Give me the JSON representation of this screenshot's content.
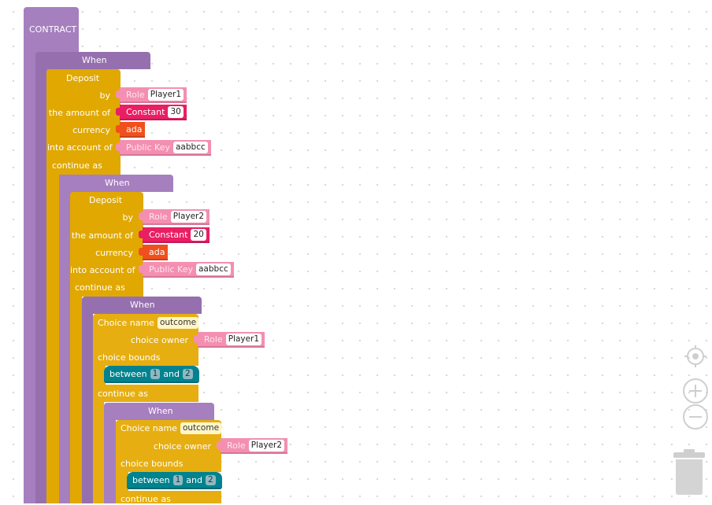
{
  "workspace": {
    "contract_label": "CONTRACT",
    "when_label": "When",
    "deposit_label": "Deposit",
    "by_label": "by",
    "amount_label": "the amount of",
    "currency_label": "currency",
    "into_account_label": "into account of",
    "continue_as_label": "continue as",
    "role_label": "Role",
    "constant_label": "Constant",
    "currency_value": "ada",
    "public_key_label": "Public Key",
    "choice_name_label": "Choice name",
    "choice_owner_label": "choice owner",
    "choice_bounds_label": "choice bounds",
    "between_label": "between",
    "and_label": "and",
    "deposits": [
      {
        "party": "Player1",
        "amount": "30",
        "account": "aabbcc"
      },
      {
        "party": "Player2",
        "amount": "20",
        "account": "aabbcc"
      }
    ],
    "choices": [
      {
        "name": "outcome",
        "owner": "Player1",
        "from": "1",
        "to": "2"
      },
      {
        "name": "outcome",
        "owner": "Player2",
        "from": "1",
        "to": "2"
      }
    ]
  },
  "controls": {
    "recenter_icon": "crosshair-icon",
    "zoom_in_icon": "plus-circle-icon",
    "zoom_out_icon": "minus-circle-icon",
    "trash_icon": "trash-icon"
  },
  "colors": {
    "contract": "#a67fbf",
    "action": "#e0a800",
    "role": "#f48fb1",
    "constant": "#e91e63",
    "currency": "#f0501e",
    "bound": "#00838f"
  }
}
